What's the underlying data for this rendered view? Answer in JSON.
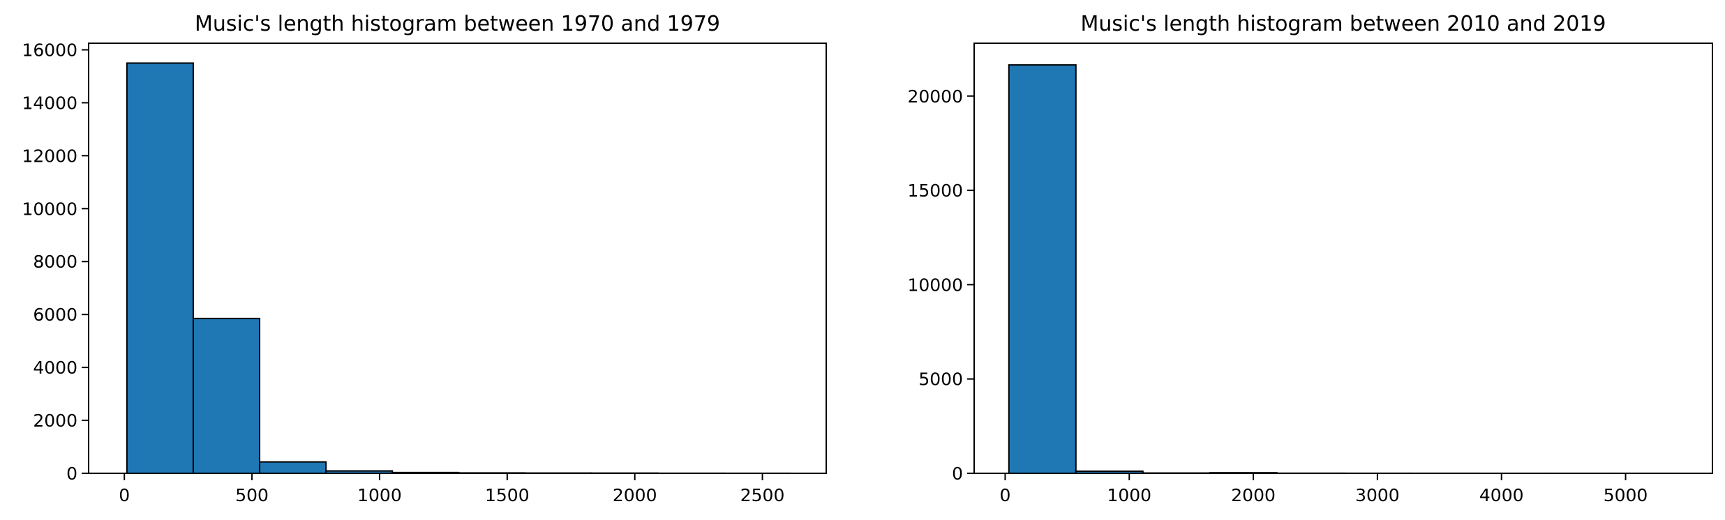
{
  "chart_data": [
    {
      "type": "bar",
      "title": "Music's length histogram between 1970 and 1979",
      "xlabel": "",
      "ylabel": "",
      "xlim": [
        -140,
        2750
      ],
      "ylim": [
        0,
        16250
      ],
      "xticks": [
        0,
        500,
        1000,
        1500,
        2000,
        2500
      ],
      "yticks": [
        0,
        2000,
        4000,
        6000,
        8000,
        10000,
        12000,
        14000,
        16000
      ],
      "grid": false,
      "bar_color": "#1f77b4",
      "edge_color": "#000000",
      "bin_edges": [
        10,
        270,
        530,
        790,
        1050,
        1310,
        1570,
        1830,
        2090,
        2350,
        2610
      ],
      "values": [
        15500,
        5850,
        430,
        90,
        30,
        15,
        10,
        8,
        3,
        2
      ]
    },
    {
      "type": "bar",
      "title": "Music's length histogram between 2010 and 2019",
      "xlabel": "",
      "ylabel": "",
      "xlim": [
        -250,
        5700
      ],
      "ylim": [
        0,
        22800
      ],
      "xticks": [
        0,
        1000,
        2000,
        3000,
        4000,
        5000
      ],
      "yticks": [
        0,
        5000,
        10000,
        15000,
        20000
      ],
      "grid": false,
      "bar_color": "#1f77b4",
      "edge_color": "#000000",
      "bin_edges": [
        30,
        570,
        1110,
        1650,
        2190,
        2730,
        3270,
        3810,
        4350,
        4890,
        5430
      ],
      "values": [
        21650,
        110,
        15,
        30,
        5,
        3,
        2,
        1,
        1,
        1
      ]
    }
  ]
}
